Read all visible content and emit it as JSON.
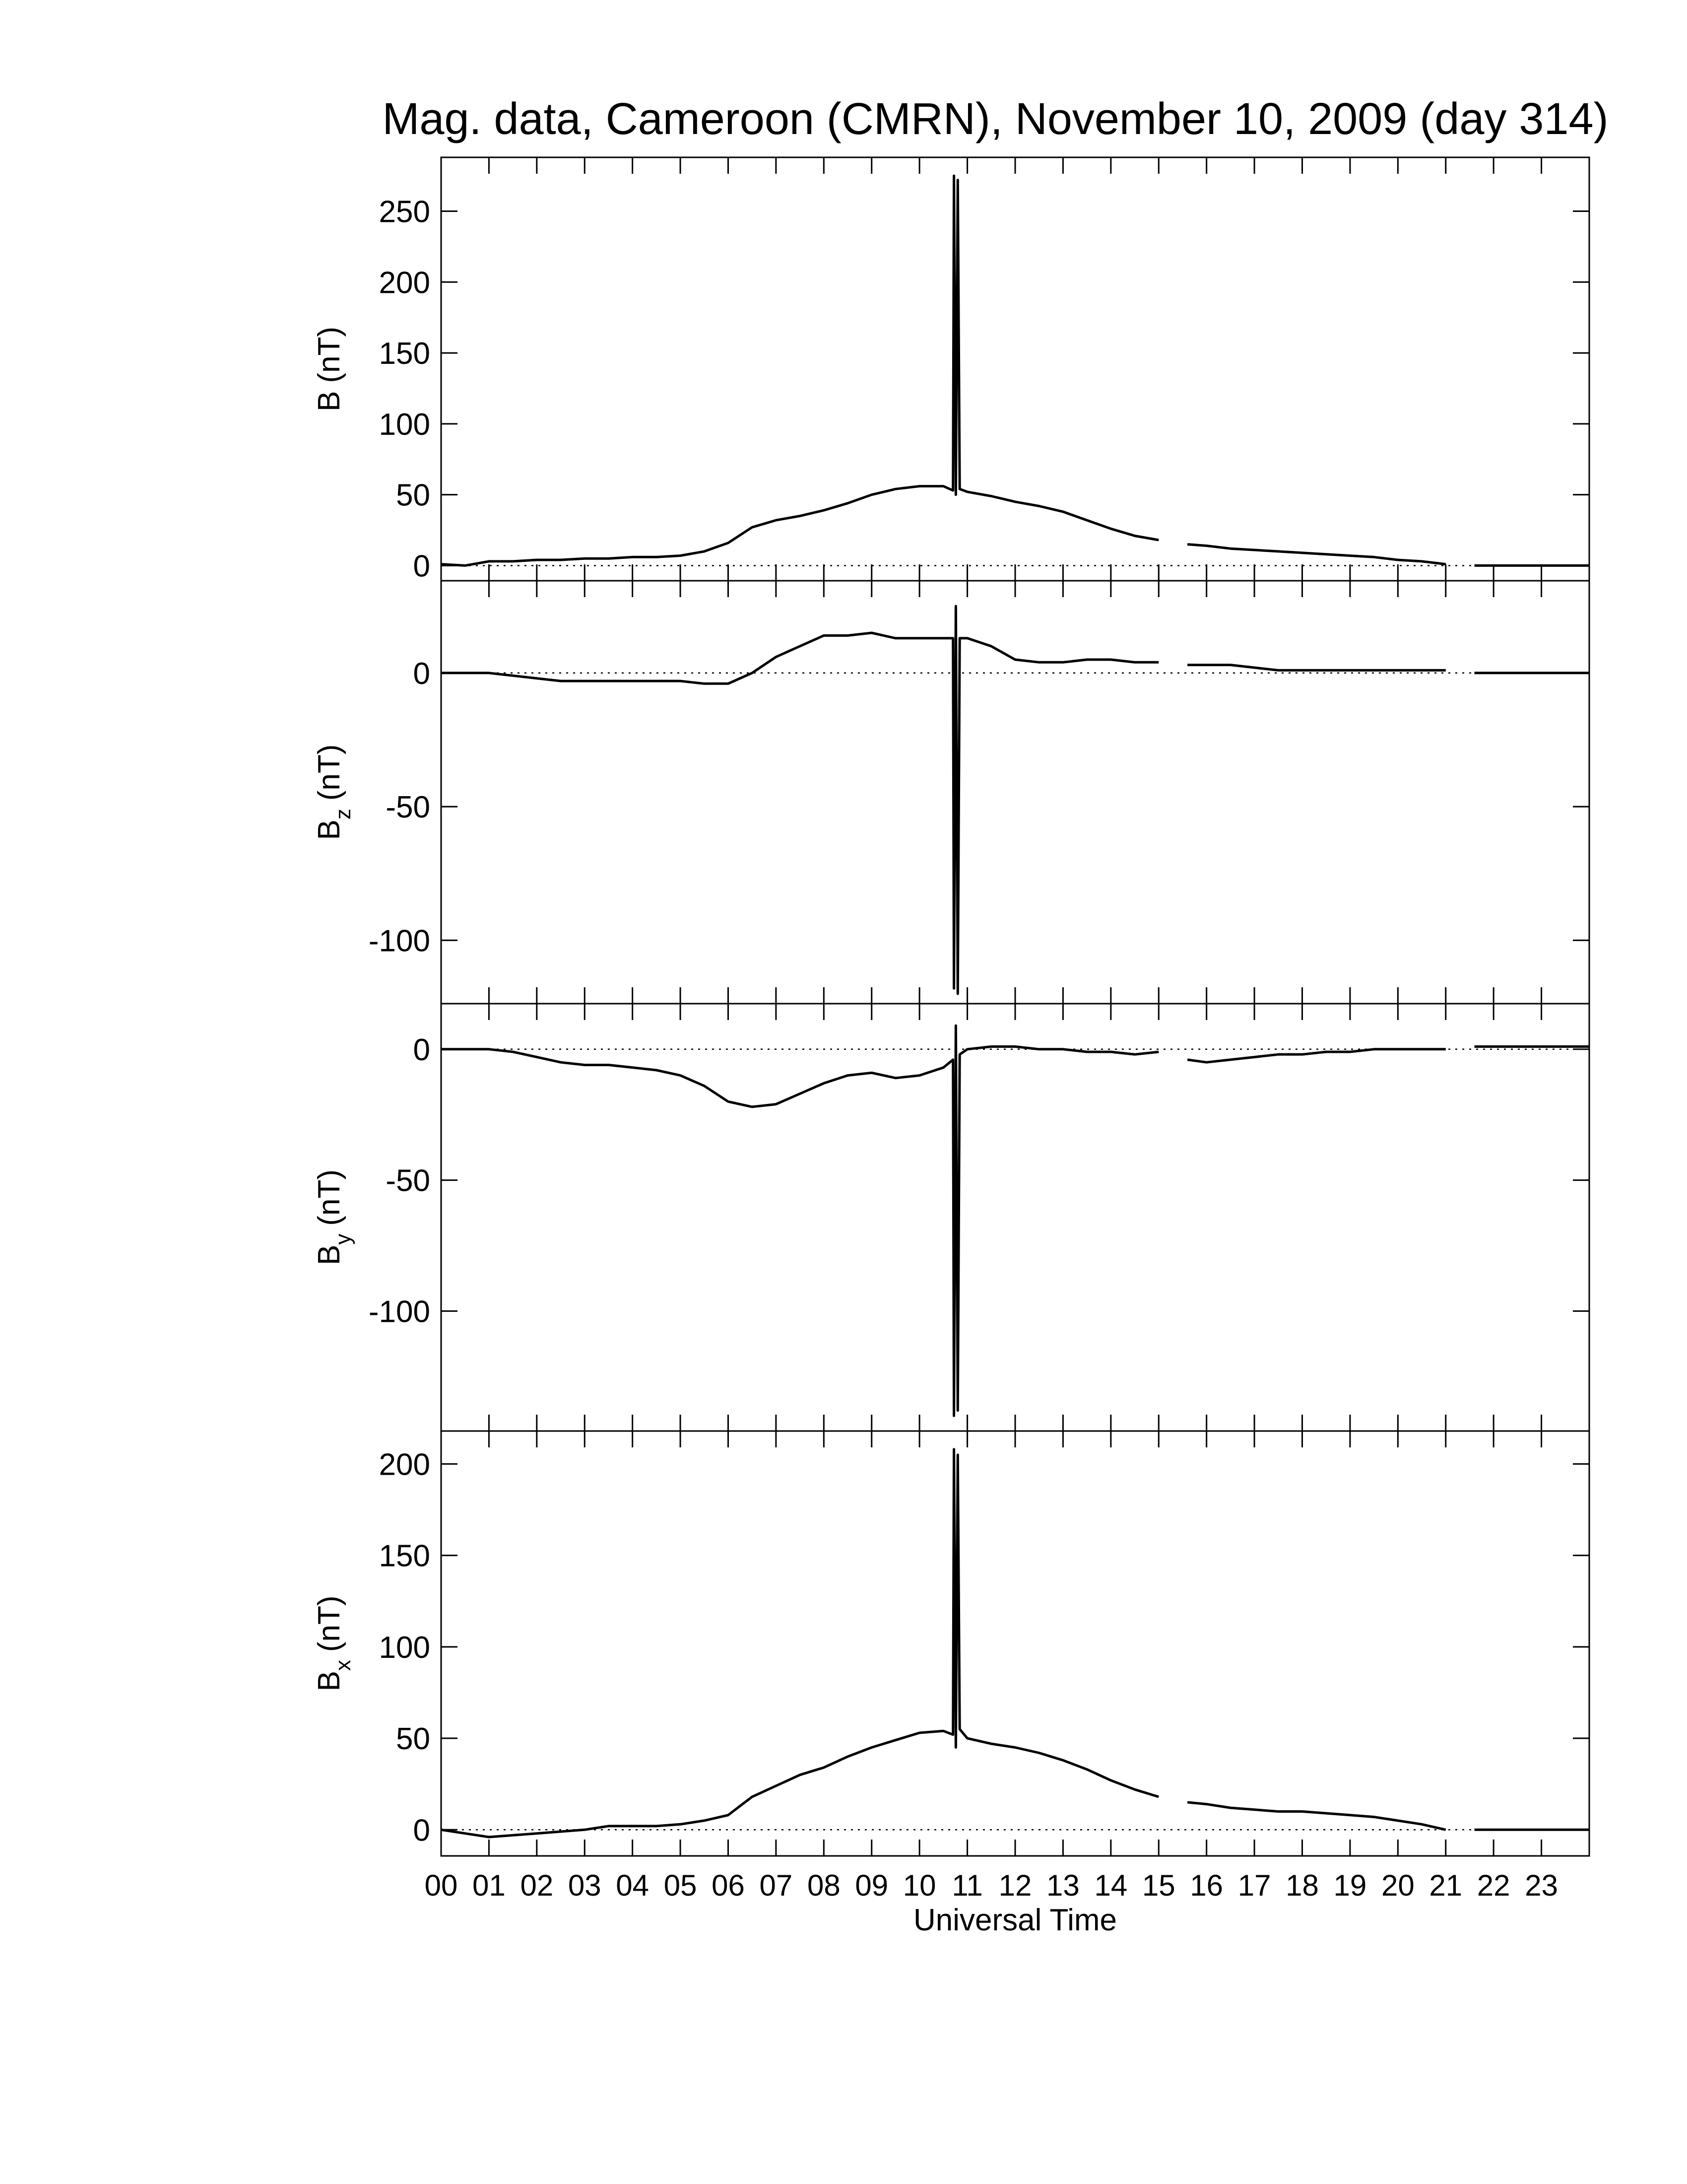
{
  "chart_data": [
    {
      "type": "line",
      "title": "Mag. data, Cameroon (CMRN), November 10, 2009 (day 314)",
      "ylabel": {
        "main": "B",
        "unit": "(nT)"
      },
      "x": [
        0,
        0.5,
        1,
        1.5,
        2,
        2.5,
        3,
        3.5,
        4,
        4.5,
        5,
        5.5,
        6,
        6.5,
        7,
        7.5,
        8,
        8.5,
        9,
        9.5,
        10,
        10.5,
        10.7,
        10.72,
        10.76,
        10.8,
        10.84,
        11,
        11.5,
        12,
        12.5,
        13,
        13.5,
        14,
        14.5,
        15,
        15.3,
        15.6,
        16,
        16.5,
        17,
        17.5,
        18,
        18.5,
        19,
        19.5,
        20,
        20.5,
        21,
        21.4,
        21.6,
        22,
        22.5,
        23,
        23.5,
        24
      ],
      "series": [
        {
          "color": "#000000",
          "values": [
            1,
            0,
            3,
            3,
            4,
            4,
            5,
            5,
            6,
            6,
            7,
            10,
            16,
            27,
            32,
            35,
            39,
            44,
            50,
            54,
            56,
            56,
            53,
            275,
            50,
            272,
            54,
            52,
            49,
            45,
            42,
            38,
            32,
            26,
            21,
            18,
            null,
            15,
            14,
            12,
            11,
            10,
            9,
            8,
            7,
            6,
            4,
            3,
            1,
            null,
            0,
            0,
            0,
            0,
            0,
            0
          ]
        }
      ],
      "xlim": [
        0,
        24
      ],
      "xticks": [
        0,
        1,
        2,
        3,
        4,
        5,
        6,
        7,
        8,
        9,
        10,
        11,
        12,
        13,
        14,
        15,
        16,
        17,
        18,
        19,
        20,
        21,
        22,
        23
      ],
      "ylim": [
        -10.7,
        288
      ],
      "yticks": [
        0,
        50,
        100,
        150,
        200,
        250
      ],
      "zero_line": true
    },
    {
      "type": "line",
      "ylabel": {
        "main": "B",
        "sub": "z",
        "unit": "(nT)"
      },
      "x": [
        0,
        0.5,
        1,
        1.5,
        2,
        2.5,
        3,
        3.5,
        4,
        4.5,
        5,
        5.5,
        6,
        6.5,
        7,
        7.5,
        8,
        8.5,
        9,
        9.5,
        10,
        10.5,
        10.7,
        10.72,
        10.76,
        10.8,
        10.84,
        11,
        11.5,
        12,
        12.5,
        13,
        13.5,
        14,
        14.5,
        15,
        15.3,
        15.6,
        16,
        16.5,
        17,
        17.5,
        18,
        18.5,
        19,
        19.5,
        20,
        20.5,
        21,
        21.4,
        21.6,
        22,
        22.5,
        23,
        23.5,
        24
      ],
      "series": [
        {
          "color": "#000000",
          "values": [
            0,
            0,
            0,
            -1,
            -2,
            -3,
            -3,
            -3,
            -3,
            -3,
            -3,
            -4,
            -4,
            0,
            6,
            10,
            14,
            14,
            15,
            13,
            13,
            13,
            13,
            -118,
            25,
            -120,
            13,
            13,
            10,
            5,
            4,
            4,
            5,
            5,
            4,
            4,
            null,
            3,
            3,
            3,
            2,
            1,
            1,
            1,
            1,
            1,
            1,
            1,
            1,
            null,
            0,
            0,
            0,
            0,
            0,
            0
          ]
        }
      ],
      "xlim": [
        0,
        24
      ],
      "xticks": [
        0,
        1,
        2,
        3,
        4,
        5,
        6,
        7,
        8,
        9,
        10,
        11,
        12,
        13,
        14,
        15,
        16,
        17,
        18,
        19,
        20,
        21,
        22,
        23
      ],
      "ylim": [
        -123.7,
        34.5
      ],
      "yticks": [
        -100,
        -50,
        0
      ],
      "zero_line": true
    },
    {
      "type": "line",
      "ylabel": {
        "main": "B",
        "sub": "y",
        "unit": "(nT)"
      },
      "x": [
        0,
        0.5,
        1,
        1.5,
        2,
        2.5,
        3,
        3.5,
        4,
        4.5,
        5,
        5.5,
        6,
        6.5,
        7,
        7.5,
        8,
        8.5,
        9,
        9.5,
        10,
        10.5,
        10.7,
        10.72,
        10.76,
        10.8,
        10.84,
        11,
        11.5,
        12,
        12.5,
        13,
        13.5,
        14,
        14.5,
        15,
        15.3,
        15.6,
        16,
        16.5,
        17,
        17.5,
        18,
        18.5,
        19,
        19.5,
        20,
        20.5,
        21,
        21.4,
        21.6,
        22,
        22.5,
        23,
        23.5,
        24
      ],
      "series": [
        {
          "color": "#000000",
          "values": [
            0,
            0,
            0,
            -1,
            -3,
            -5,
            -6,
            -6,
            -7,
            -8,
            -10,
            -14,
            -20,
            -22,
            -21,
            -17,
            -13,
            -10,
            -9,
            -11,
            -10,
            -7,
            -4,
            -140,
            9,
            -138,
            -2,
            0,
            1,
            1,
            0,
            0,
            -1,
            -1,
            -2,
            -1,
            null,
            -4,
            -5,
            -4,
            -3,
            -2,
            -2,
            -1,
            -1,
            0,
            0,
            0,
            0,
            null,
            1,
            1,
            1,
            1,
            1,
            1
          ]
        }
      ],
      "xlim": [
        0,
        24
      ],
      "xticks": [
        0,
        1,
        2,
        3,
        4,
        5,
        6,
        7,
        8,
        9,
        10,
        11,
        12,
        13,
        14,
        15,
        16,
        17,
        18,
        19,
        20,
        21,
        22,
        23
      ],
      "ylim": [
        -145.8,
        17.4
      ],
      "yticks": [
        -100,
        -50,
        0
      ],
      "zero_line": true
    },
    {
      "type": "line",
      "xlabel": "Universal Time",
      "ylabel": {
        "main": "B",
        "sub": "x",
        "unit": "(nT)"
      },
      "x": [
        0,
        0.5,
        1,
        1.5,
        2,
        2.5,
        3,
        3.5,
        4,
        4.5,
        5,
        5.5,
        6,
        6.5,
        7,
        7.5,
        8,
        8.5,
        9,
        9.5,
        10,
        10.5,
        10.7,
        10.72,
        10.76,
        10.8,
        10.84,
        11,
        11.5,
        12,
        12.5,
        13,
        13.5,
        14,
        14.5,
        15,
        15.3,
        15.6,
        16,
        16.5,
        17,
        17.5,
        18,
        18.5,
        19,
        19.5,
        20,
        20.5,
        21,
        21.4,
        21.6,
        22,
        22.5,
        23,
        23.5,
        24
      ],
      "series": [
        {
          "color": "#000000",
          "values": [
            0,
            -2,
            -4,
            -3,
            -2,
            -1,
            0,
            2,
            2,
            2,
            3,
            5,
            8,
            18,
            24,
            30,
            34,
            40,
            45,
            49,
            53,
            54,
            52,
            208,
            45,
            205,
            55,
            50,
            47,
            45,
            42,
            38,
            33,
            27,
            22,
            18,
            null,
            15,
            14,
            12,
            11,
            10,
            10,
            9,
            8,
            7,
            5,
            3,
            0,
            null,
            0,
            0,
            0,
            0,
            0,
            0
          ]
        }
      ],
      "xlim": [
        0,
        24
      ],
      "xticks": [
        {
          "value": 0,
          "label": "00"
        },
        {
          "value": 1,
          "label": "01"
        },
        {
          "value": 2,
          "label": "02"
        },
        {
          "value": 3,
          "label": "03"
        },
        {
          "value": 4,
          "label": "04"
        },
        {
          "value": 5,
          "label": "05"
        },
        {
          "value": 6,
          "label": "06"
        },
        {
          "value": 7,
          "label": "07"
        },
        {
          "value": 8,
          "label": "08"
        },
        {
          "value": 9,
          "label": "09"
        },
        {
          "value": 10,
          "label": "10"
        },
        {
          "value": 11,
          "label": "11"
        },
        {
          "value": 12,
          "label": "12"
        },
        {
          "value": 13,
          "label": "13"
        },
        {
          "value": 14,
          "label": "14"
        },
        {
          "value": 15,
          "label": "15"
        },
        {
          "value": 16,
          "label": "16"
        },
        {
          "value": 17,
          "label": "17"
        },
        {
          "value": 18,
          "label": "18"
        },
        {
          "value": 19,
          "label": "19"
        },
        {
          "value": 20,
          "label": "20"
        },
        {
          "value": 21,
          "label": "21"
        },
        {
          "value": 22,
          "label": "22"
        },
        {
          "value": 23,
          "label": "23"
        }
      ],
      "ylim": [
        -14.3,
        218
      ],
      "yticks": [
        0,
        50,
        100,
        150,
        200
      ],
      "zero_line": true
    }
  ]
}
